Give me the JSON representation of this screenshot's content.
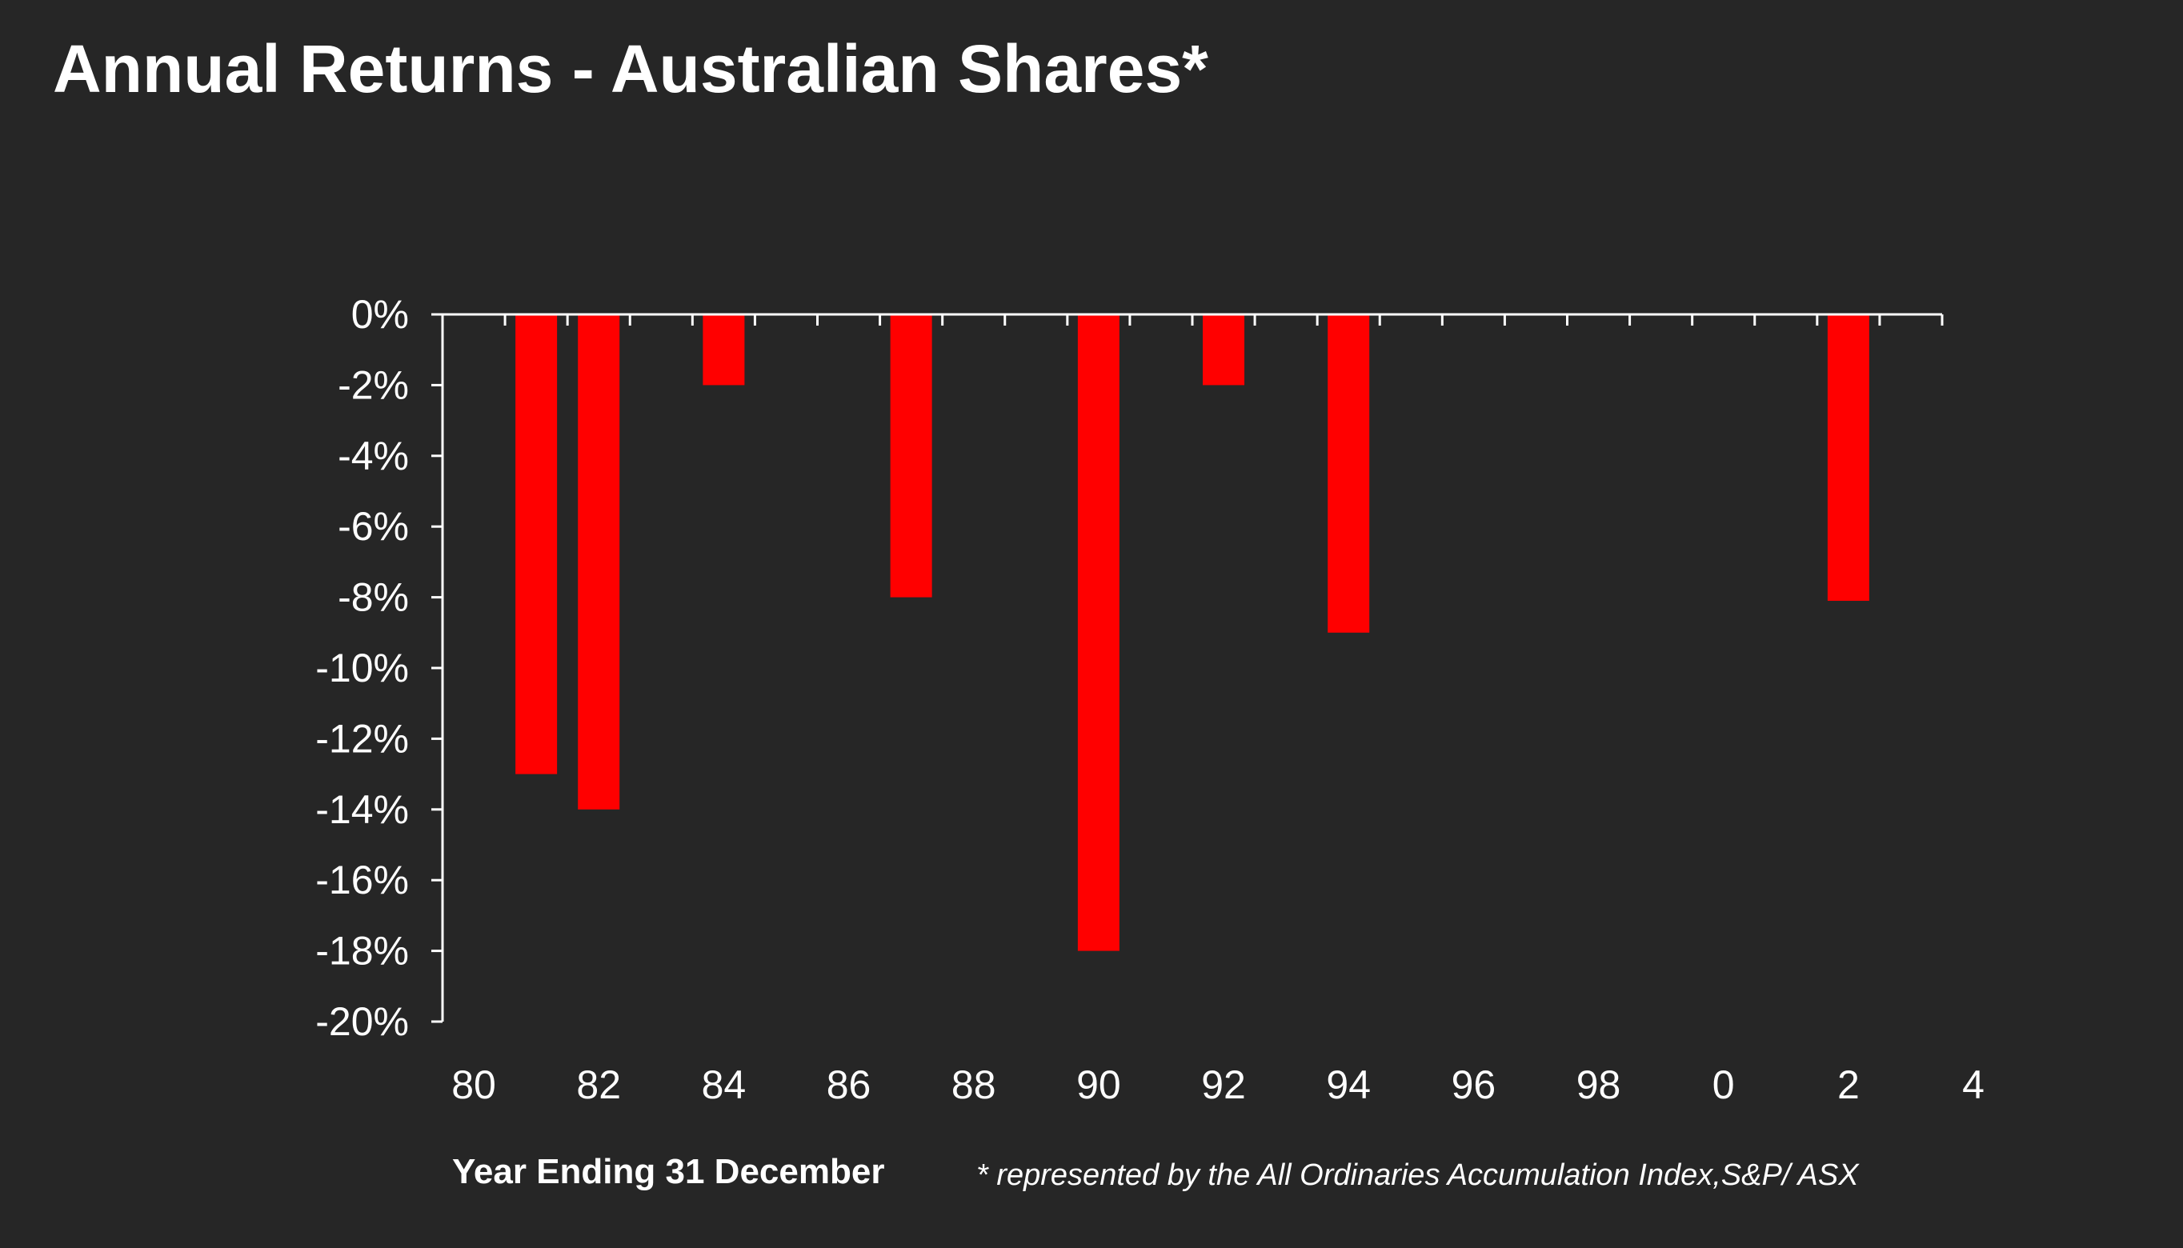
{
  "chart_data": {
    "type": "bar",
    "title": "Annual Returns - Australian Shares*",
    "xlabel": "Year Ending 31 December",
    "ylabel": "",
    "footnote": "* represented by the All Ordinaries Accumulation Index,S&P/ ASX",
    "x_tick_labels": [
      "80",
      "82",
      "84",
      "86",
      "88",
      "90",
      "92",
      "94",
      "96",
      "98",
      "0",
      "2",
      "4"
    ],
    "y_tick_labels": [
      "0%",
      "-2%",
      "-4%",
      "-6%",
      "-8%",
      "-10%",
      "-12%",
      "-14%",
      "-16%",
      "-18%",
      "-20%"
    ],
    "ylim": [
      -20,
      0
    ],
    "y_tick_step": 2,
    "xlim": [
      1980,
      2004
    ],
    "categories": [
      1981,
      1982,
      1984,
      1987,
      1990,
      1992,
      1994,
      2002
    ],
    "values": [
      -13,
      -14,
      -2,
      -8,
      -18,
      -2,
      -9,
      -8.1
    ],
    "grid": false,
    "legend": "none",
    "colors": {
      "bar": "#ff0000",
      "background": "#262626",
      "text": "#ffffff",
      "axis": "#ffffff"
    }
  }
}
